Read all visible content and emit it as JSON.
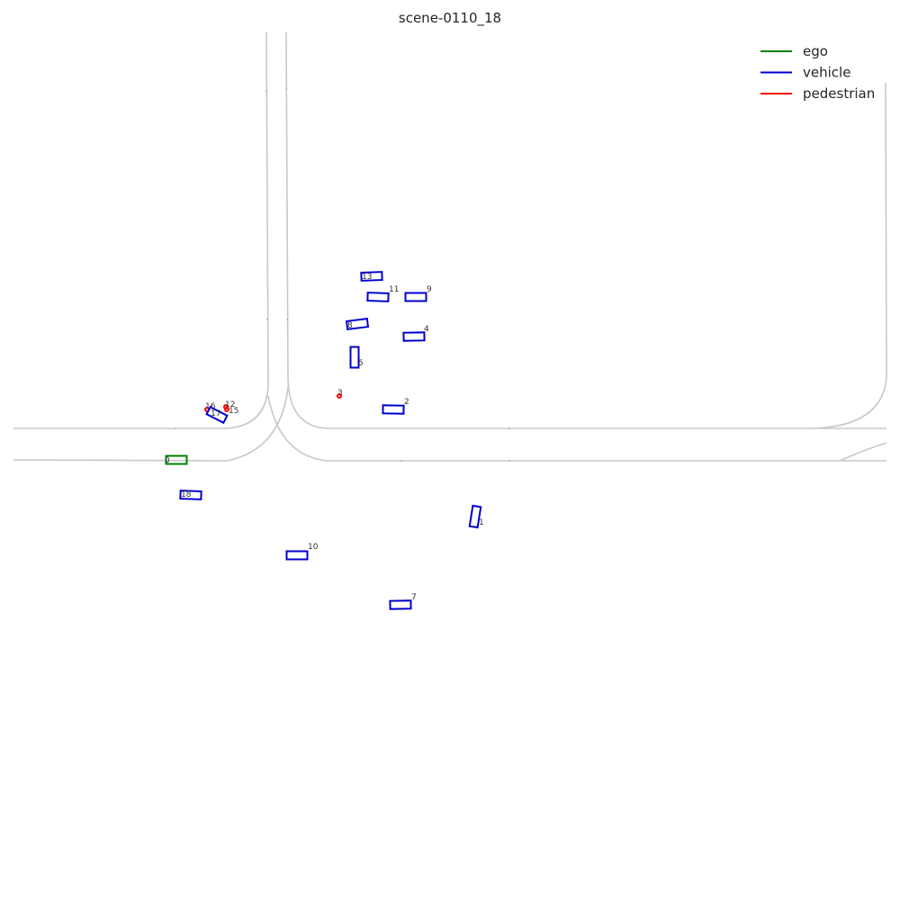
{
  "title": "scene-0110_18",
  "colors": {
    "ego": "#008000",
    "vehicle": "#0000cc",
    "pedestrian": "#ff0000",
    "road": "#c8c8c8"
  },
  "legend": [
    {
      "label": "ego",
      "category": "ego"
    },
    {
      "label": "vehicle",
      "category": "vehicle"
    },
    {
      "label": "pedestrian",
      "category": "pedestrian"
    }
  ],
  "agents": [
    {
      "id": "0",
      "category": "ego"
    },
    {
      "id": "1",
      "category": "vehicle"
    },
    {
      "id": "2",
      "category": "vehicle"
    },
    {
      "id": "3",
      "category": "pedestrian"
    },
    {
      "id": "4",
      "category": "vehicle"
    },
    {
      "id": "5",
      "category": "vehicle"
    },
    {
      "id": "7",
      "category": "vehicle"
    },
    {
      "id": "8",
      "category": "vehicle"
    },
    {
      "id": "9",
      "category": "vehicle"
    },
    {
      "id": "10",
      "category": "vehicle"
    },
    {
      "id": "11",
      "category": "vehicle"
    },
    {
      "id": "12",
      "category": "pedestrian"
    },
    {
      "id": "13",
      "category": "vehicle"
    },
    {
      "id": "15",
      "category": "pedestrian"
    },
    {
      "id": "16",
      "category": "pedestrian"
    },
    {
      "id": "17",
      "category": "vehicle"
    },
    {
      "id": "18",
      "category": "vehicle"
    }
  ]
}
